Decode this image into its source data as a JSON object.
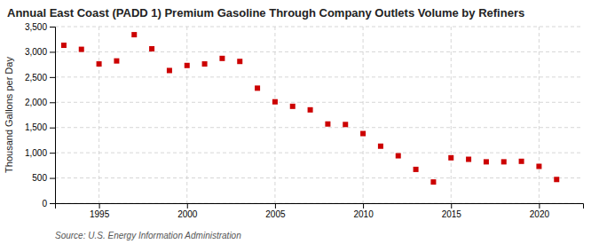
{
  "chart_data": {
    "type": "scatter",
    "title": "Annual East Coast (PADD 1) Premium Gasoline Through Company Outlets Volume by Refiners",
    "y_label": "Thousand Gallons per Day",
    "annotations": [
      "Source: U.S. Energy Information Administration"
    ],
    "x": [
      1993,
      1994,
      1995,
      1996,
      1997,
      1998,
      1999,
      2000,
      2001,
      2002,
      2003,
      2004,
      2005,
      2006,
      2007,
      2008,
      2009,
      2010,
      2011,
      2012,
      2013,
      2014,
      2015,
      2016,
      2017,
      2018,
      2019,
      2020,
      2021
    ],
    "values": [
      3130,
      3050,
      2760,
      2820,
      3340,
      3060,
      2630,
      2730,
      2760,
      2870,
      2810,
      2280,
      2010,
      1920,
      1850,
      1570,
      1560,
      1380,
      1130,
      940,
      670,
      420,
      900,
      870,
      820,
      820,
      830,
      730,
      470
    ],
    "color": "#cc0000",
    "marker": "square",
    "xlim": [
      1992.5,
      2022.5
    ],
    "xticks": [
      1995,
      2000,
      2005,
      2010,
      2015,
      2020
    ],
    "ylim": [
      0,
      3500
    ],
    "yticks": [
      0,
      500,
      {
        "value": 1000,
        "label": "1,000"
      },
      {
        "value": 1500,
        "label": "1,500"
      },
      {
        "value": 2000,
        "label": "2,000"
      },
      {
        "value": 2500,
        "label": "2,500"
      },
      {
        "value": 3000,
        "label": "3,000"
      },
      {
        "value": 3500,
        "label": "3,500"
      }
    ],
    "grid": true
  }
}
